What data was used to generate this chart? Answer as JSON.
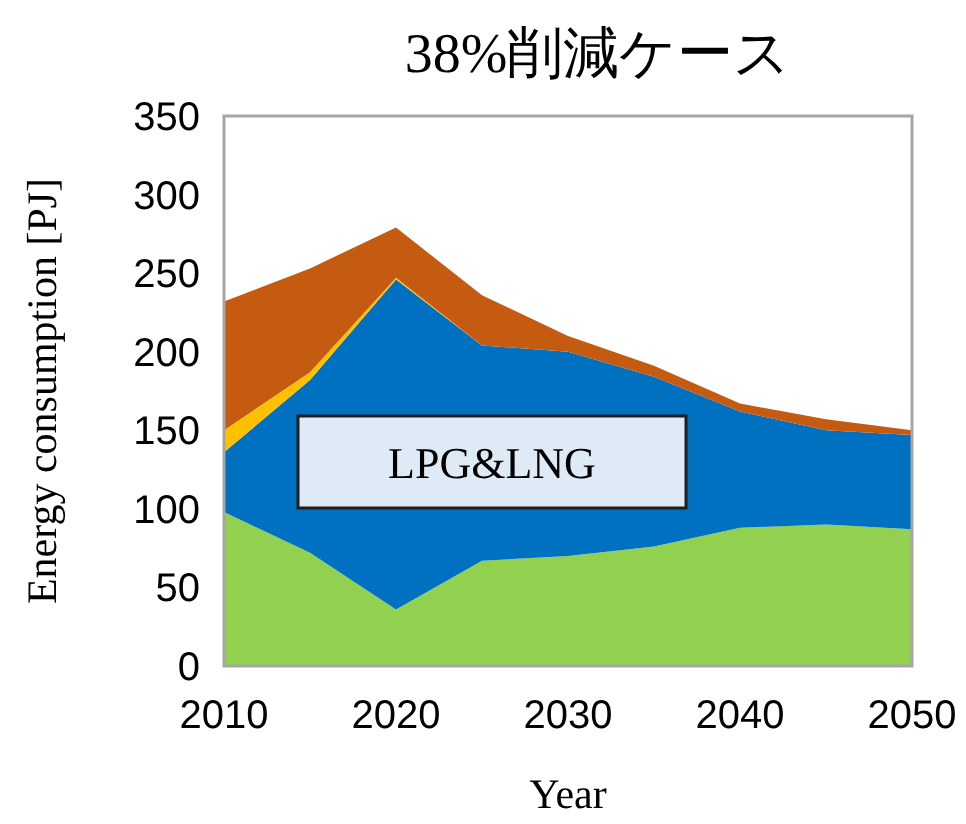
{
  "chart_data": {
    "type": "area",
    "title": "38%削減ケース",
    "xlabel": "Year",
    "ylabel": "Energy consumption [PJ]",
    "stacked": true,
    "x": [
      2010,
      2015,
      2020,
      2025,
      2030,
      2035,
      2040,
      2045,
      2050
    ],
    "series": [
      {
        "color": "#92d050",
        "values": [
          98,
          72,
          36,
          67,
          70,
          76,
          88,
          90,
          87
        ]
      },
      {
        "color": "#0070c0",
        "values": [
          38,
          110,
          210,
          137,
          130,
          108,
          74,
          60,
          60
        ]
      },
      {
        "color": "#ffc000",
        "values": [
          14,
          5,
          1,
          0,
          0,
          0,
          0,
          0,
          0
        ]
      },
      {
        "color": "#c55a11",
        "values": [
          82,
          66,
          32,
          32,
          10,
          7,
          5,
          7,
          3
        ]
      }
    ],
    "xlim": [
      2010,
      2050
    ],
    "ylim": [
      0,
      350
    ],
    "xticks": [
      2010,
      2020,
      2030,
      2040,
      2050
    ],
    "yticks": [
      0,
      50,
      100,
      150,
      200,
      250,
      300,
      350
    ],
    "annotations": [
      "LPG&LNG"
    ]
  }
}
